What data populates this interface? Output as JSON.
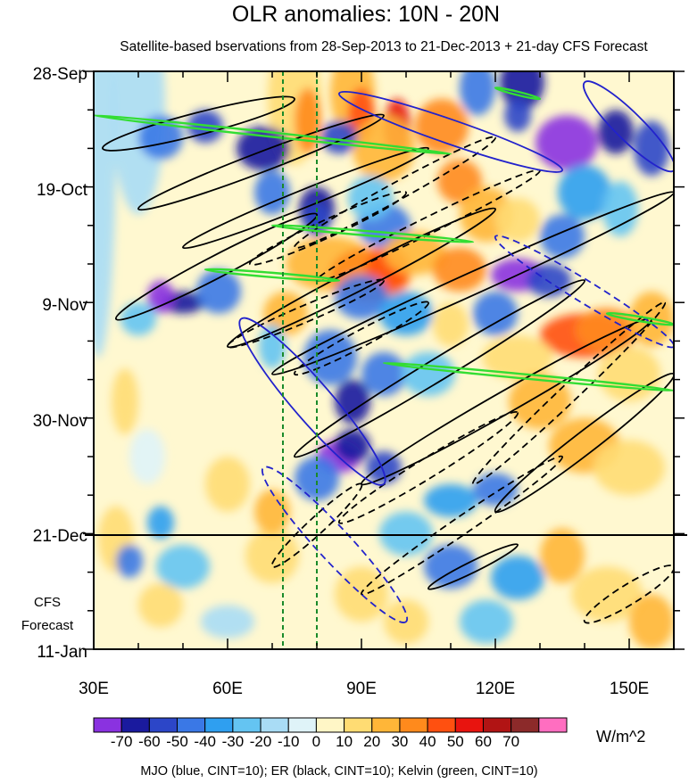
{
  "chart_data": {
    "type": "heatmap",
    "title": "OLR anomalies: 10N - 20N",
    "subtitle": "Satellite-based bservations from 28-Sep-2013 to 21-Dec-2013 + 21-day CFS Forecast",
    "x_axis": {
      "ticks": [
        "30E",
        "60E",
        "90E",
        "120E",
        "150E"
      ],
      "tick_values": [
        30,
        60,
        90,
        120,
        150
      ],
      "range": [
        30,
        160
      ]
    },
    "y_axis": {
      "ticks": [
        "28-Sep",
        "19-Oct",
        "9-Nov",
        "30-Nov",
        "21-Dec",
        "11-Jan"
      ],
      "tick_values": [
        0,
        21,
        42,
        63,
        84,
        105
      ],
      "range": [
        0,
        105
      ],
      "reversed": true
    },
    "forecast_start": "21-Dec",
    "forecast_label": [
      "CFS",
      "Forecast"
    ],
    "reference_lines_lon": [
      72,
      80
    ],
    "colorbar": {
      "unit": "W/m^2",
      "labels": [
        "-70",
        "-60",
        "-50",
        "-40",
        "-30",
        "-20",
        "-10",
        "0",
        "10",
        "20",
        "30",
        "40",
        "50",
        "60",
        "70"
      ],
      "colors": [
        "#8a32e0",
        "#1a1a9e",
        "#2c46c8",
        "#3a78e6",
        "#2f9ff0",
        "#64c4f2",
        "#a9dcf5",
        "#dff3f8",
        "#fff6c6",
        "#ffdc73",
        "#ffb638",
        "#ff8a1c",
        "#ff5010",
        "#e8140f",
        "#b11414",
        "#8c2a2a",
        "#ff6ec0"
      ]
    },
    "contour_note": "MJO (blue, CINT=10); ER (black, CINT=10); Kelvin (green, CINT=10)",
    "contour_colors": {
      "mjo": "#2222cc",
      "er": "#000000",
      "kelvin": "#33dd33"
    }
  }
}
